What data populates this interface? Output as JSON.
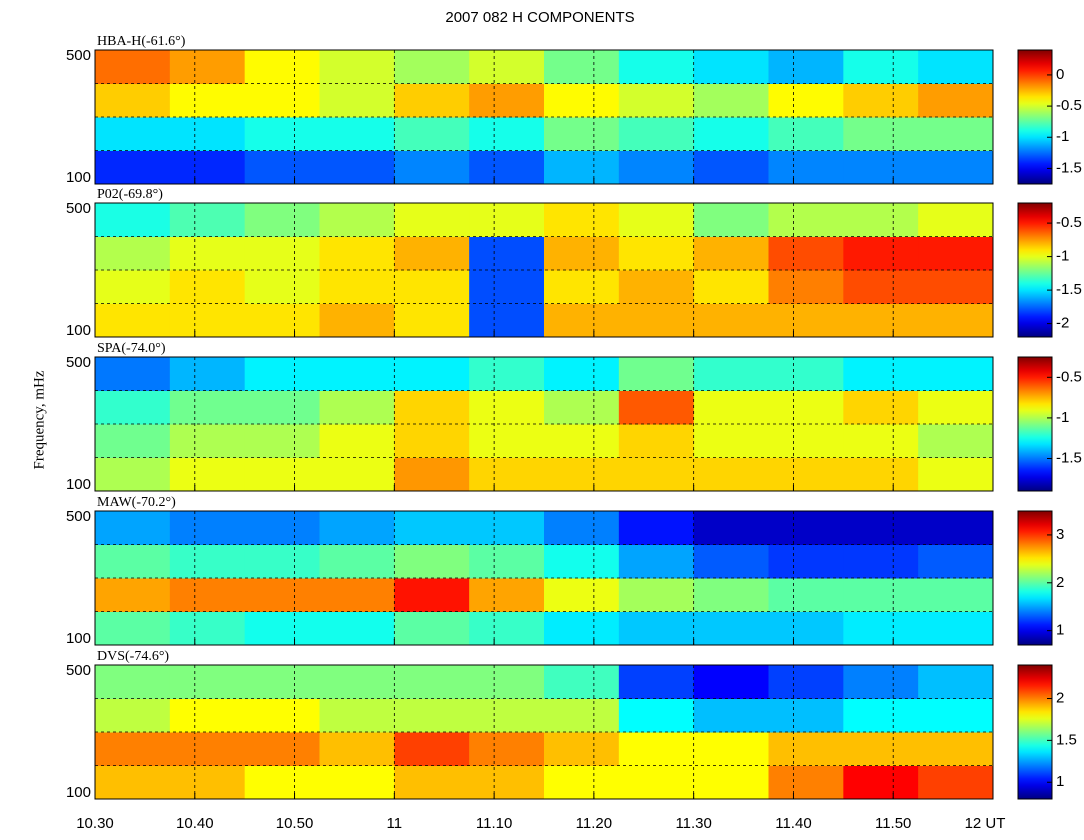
{
  "title": "2007   082 H COMPONENTS",
  "y_label": "Frequency, mHz",
  "xlim": [
    10.5,
    12
  ],
  "xticks": [
    {
      "value": 10.5,
      "label": "10.30"
    },
    {
      "value": 10.6667,
      "label": "10.40"
    },
    {
      "value": 10.8333,
      "label": "10.50"
    },
    {
      "value": 11,
      "label": "11"
    },
    {
      "value": 11.1667,
      "label": "11.10"
    },
    {
      "value": 11.3333,
      "label": "11.20"
    },
    {
      "value": 11.5,
      "label": "11.30"
    },
    {
      "value": 11.6667,
      "label": "11.40"
    },
    {
      "value": 11.8333,
      "label": "11.50"
    },
    {
      "value": 12,
      "label": "12 UT"
    }
  ],
  "chart_data": [
    {
      "type": "heatmap",
      "title": "HBA-H(-61.6°)",
      "colormap": "jet",
      "x_bins": [
        10.5,
        10.625,
        10.75,
        10.875,
        11,
        11.125,
        11.25,
        11.375,
        11.5,
        11.625,
        11.75,
        11.875,
        12
      ],
      "y_bins": [
        100,
        200,
        300,
        400,
        500
      ],
      "ylim": [
        100,
        500
      ],
      "yticks": [
        100,
        500
      ],
      "ygrid": [
        200,
        300,
        400
      ],
      "z": [
        [
          -1.4,
          -1.4,
          -1.3,
          -1.3,
          -1.2,
          -1.3,
          -1.1,
          -1.2,
          -1.3,
          -1.2,
          -1.2,
          -1.2
        ],
        [
          -1.0,
          -1.0,
          -0.9,
          -0.9,
          -0.8,
          -0.9,
          -0.7,
          -0.8,
          -0.9,
          -0.8,
          -0.7,
          -0.7
        ],
        [
          -0.3,
          -0.4,
          -0.4,
          -0.5,
          -0.3,
          -0.2,
          -0.4,
          -0.5,
          -0.6,
          -0.4,
          -0.3,
          -0.2
        ],
        [
          -0.1,
          -0.2,
          -0.4,
          -0.5,
          -0.6,
          -0.5,
          -0.7,
          -0.9,
          -1.0,
          -1.1,
          -0.9,
          -1.0
        ]
      ],
      "clim": [
        -1.75,
        0.4
      ],
      "cticks": [
        0,
        -0.5,
        -1,
        -1.5
      ]
    },
    {
      "type": "heatmap",
      "title": "P02(-69.8°)",
      "colormap": "jet",
      "x_bins": [
        10.5,
        10.625,
        10.75,
        10.875,
        11,
        11.125,
        11.25,
        11.375,
        11.5,
        11.625,
        11.75,
        11.875,
        12
      ],
      "y_bins": [
        100,
        200,
        300,
        400,
        500
      ],
      "ylim": [
        100,
        500
      ],
      "yticks": [
        100,
        500
      ],
      "ygrid": [
        200,
        300,
        400
      ],
      "z": [
        [
          -0.9,
          -0.9,
          -0.9,
          -0.8,
          -0.9,
          -1.8,
          -0.8,
          -0.8,
          -0.8,
          -0.8,
          -0.8,
          -0.8
        ],
        [
          -1.0,
          -0.9,
          -1.0,
          -0.9,
          -0.9,
          -1.8,
          -0.9,
          -0.8,
          -0.9,
          -0.7,
          -0.6,
          -0.6
        ],
        [
          -1.1,
          -1.0,
          -1.0,
          -0.9,
          -0.8,
          -1.8,
          -0.8,
          -0.9,
          -0.8,
          -0.6,
          -0.5,
          -0.5
        ],
        [
          -1.4,
          -1.3,
          -1.2,
          -1.1,
          -1.0,
          -1.0,
          -0.9,
          -1.0,
          -1.2,
          -1.1,
          -1.1,
          -1.0
        ]
      ],
      "clim": [
        -2.2,
        -0.2
      ],
      "cticks": [
        -0.5,
        -1,
        -1.5,
        -2
      ]
    },
    {
      "type": "heatmap",
      "title": "SPA(-74.0°)",
      "colormap": "jet",
      "x_bins": [
        10.5,
        10.625,
        10.75,
        10.875,
        11,
        11.125,
        11.25,
        11.375,
        11.5,
        11.625,
        11.75,
        11.875,
        12
      ],
      "y_bins": [
        100,
        200,
        300,
        400,
        500
      ],
      "ylim": [
        100,
        500
      ],
      "yticks": [
        100,
        500
      ],
      "ygrid": [
        200,
        300,
        400
      ],
      "z": [
        [
          -1.0,
          -0.9,
          -0.9,
          -0.9,
          -0.7,
          -0.8,
          -0.8,
          -0.8,
          -0.8,
          -0.8,
          -0.8,
          -0.9
        ],
        [
          -1.1,
          -1.0,
          -1.0,
          -0.9,
          -0.8,
          -0.9,
          -0.9,
          -0.8,
          -0.9,
          -0.9,
          -0.9,
          -1.0
        ],
        [
          -1.2,
          -1.1,
          -1.1,
          -1.0,
          -0.8,
          -0.9,
          -1.0,
          -0.6,
          -0.9,
          -0.9,
          -0.8,
          -0.9
        ],
        [
          -1.5,
          -1.4,
          -1.3,
          -1.3,
          -1.3,
          -1.2,
          -1.3,
          -1.1,
          -1.2,
          -1.2,
          -1.3,
          -1.3
        ]
      ],
      "clim": [
        -1.9,
        -0.25
      ],
      "cticks": [
        -0.5,
        -1,
        -1.5
      ]
    },
    {
      "type": "heatmap",
      "title": "MAW(-70.2°)",
      "colormap": "jet",
      "x_bins": [
        10.5,
        10.625,
        10.75,
        10.875,
        11,
        11.125,
        11.25,
        11.375,
        11.5,
        11.625,
        11.75,
        11.875,
        12
      ],
      "y_bins": [
        100,
        200,
        300,
        400,
        500
      ],
      "ylim": [
        100,
        500
      ],
      "yticks": [
        100,
        500
      ],
      "ygrid": [
        200,
        300,
        400
      ],
      "z": [
        [
          2.0,
          1.9,
          1.8,
          1.8,
          2.0,
          1.9,
          1.7,
          1.6,
          1.6,
          1.6,
          1.7,
          1.7
        ],
        [
          2.7,
          2.8,
          2.8,
          2.8,
          3.1,
          2.7,
          2.4,
          2.2,
          2.1,
          2.0,
          2.0,
          2.0
        ],
        [
          2.0,
          1.9,
          1.9,
          2.0,
          2.1,
          2.0,
          1.8,
          1.5,
          1.3,
          1.2,
          1.2,
          1.3
        ],
        [
          1.5,
          1.4,
          1.4,
          1.5,
          1.6,
          1.6,
          1.4,
          1.1,
          0.9,
          0.9,
          0.9,
          0.9
        ]
      ],
      "clim": [
        0.7,
        3.5
      ],
      "cticks": [
        3,
        2,
        1
      ]
    },
    {
      "type": "heatmap",
      "title": "DVS(-74.6°)",
      "colormap": "jet",
      "x_bins": [
        10.5,
        10.625,
        10.75,
        10.875,
        11,
        11.125,
        11.25,
        11.375,
        11.5,
        11.625,
        11.75,
        11.875,
        12
      ],
      "y_bins": [
        100,
        200,
        300,
        400,
        500
      ],
      "ylim": [
        100,
        500
      ],
      "yticks": [
        100,
        500
      ],
      "ygrid": [
        200,
        300,
        400
      ],
      "z": [
        [
          1.9,
          1.9,
          1.8,
          1.8,
          1.9,
          1.9,
          1.8,
          1.8,
          1.8,
          2.0,
          2.2,
          2.1
        ],
        [
          2.0,
          2.0,
          2.0,
          1.9,
          2.1,
          2.0,
          1.9,
          1.8,
          1.8,
          1.9,
          1.9,
          1.9
        ],
        [
          1.7,
          1.8,
          1.8,
          1.7,
          1.7,
          1.7,
          1.7,
          1.4,
          1.3,
          1.3,
          1.4,
          1.4
        ],
        [
          1.6,
          1.6,
          1.6,
          1.6,
          1.6,
          1.6,
          1.5,
          1.1,
          1.0,
          1.1,
          1.2,
          1.3
        ]
      ],
      "clim": [
        0.8,
        2.4
      ],
      "cticks": [
        2,
        1.5,
        1
      ]
    }
  ]
}
